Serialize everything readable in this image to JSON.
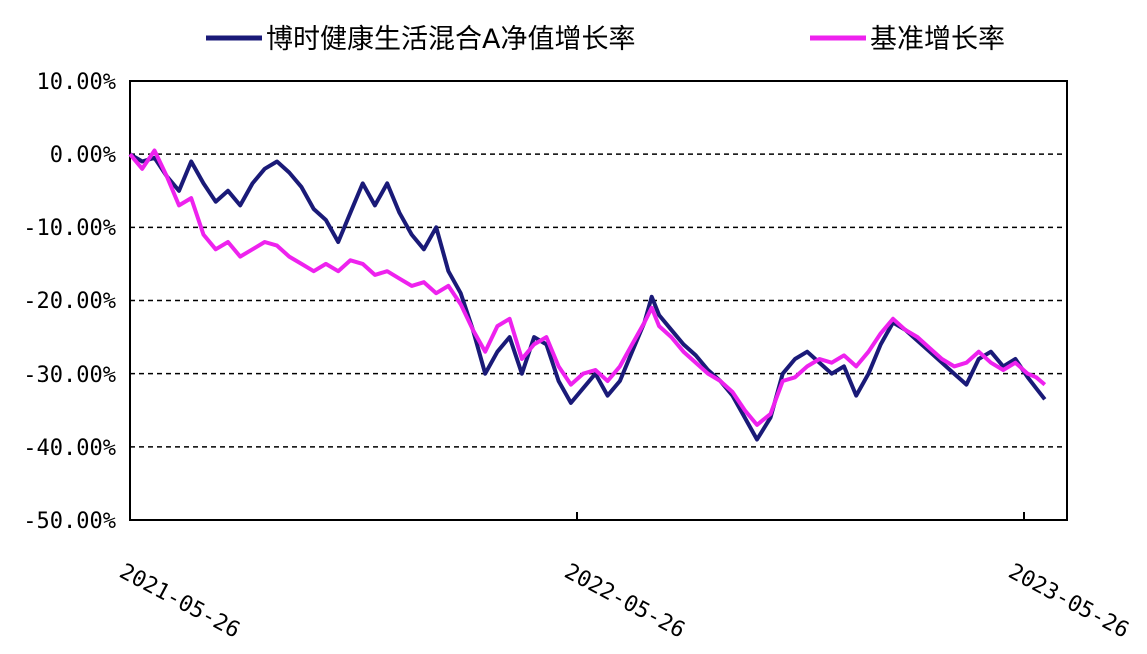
{
  "chart_data": {
    "type": "line",
    "title": "",
    "xlabel": "",
    "ylabel": "",
    "x_ticks": [
      "2021-05-26",
      "2022-05-26",
      "2023-05-26"
    ],
    "y_ticks": [
      "10.00%",
      "0.00%",
      "-10.00%",
      "-20.00%",
      "-30.00%",
      "-40.00%",
      "-50.00%"
    ],
    "ylim": [
      -50,
      10
    ],
    "xlim": [
      "2021-05-26",
      "2023-06-12"
    ],
    "grid": "horizontal-dashed",
    "legend_position": "top",
    "series": [
      {
        "name": "博时健康生活混合A净值增长率",
        "color": "#1a1a78",
        "points": [
          [
            "2021-05-26",
            0.0
          ],
          [
            "2021-06-05",
            -1.0
          ],
          [
            "2021-06-15",
            -0.5
          ],
          [
            "2021-06-25",
            -3.0
          ],
          [
            "2021-07-05",
            -5.0
          ],
          [
            "2021-07-15",
            -1.0
          ],
          [
            "2021-07-25",
            -4.0
          ],
          [
            "2021-08-04",
            -6.5
          ],
          [
            "2021-08-14",
            -5.0
          ],
          [
            "2021-08-24",
            -7.0
          ],
          [
            "2021-09-03",
            -4.0
          ],
          [
            "2021-09-13",
            -2.0
          ],
          [
            "2021-09-23",
            -1.0
          ],
          [
            "2021-10-03",
            -2.5
          ],
          [
            "2021-10-13",
            -4.5
          ],
          [
            "2021-10-23",
            -7.5
          ],
          [
            "2021-11-02",
            -9.0
          ],
          [
            "2021-11-12",
            -12.0
          ],
          [
            "2021-11-22",
            -8.0
          ],
          [
            "2021-12-02",
            -4.0
          ],
          [
            "2021-12-12",
            -7.0
          ],
          [
            "2021-12-22",
            -4.0
          ],
          [
            "2022-01-01",
            -8.0
          ],
          [
            "2022-01-11",
            -11.0
          ],
          [
            "2022-01-21",
            -13.0
          ],
          [
            "2022-01-31",
            -10.0
          ],
          [
            "2022-02-10",
            -16.0
          ],
          [
            "2022-02-20",
            -19.0
          ],
          [
            "2022-03-02",
            -24.0
          ],
          [
            "2022-03-12",
            -30.0
          ],
          [
            "2022-03-22",
            -27.0
          ],
          [
            "2022-04-01",
            -25.0
          ],
          [
            "2022-04-11",
            -30.0
          ],
          [
            "2022-04-21",
            -25.0
          ],
          [
            "2022-05-01",
            -26.0
          ],
          [
            "2022-05-11",
            -31.0
          ],
          [
            "2022-05-21",
            -34.0
          ],
          [
            "2022-05-31",
            -32.0
          ],
          [
            "2022-06-10",
            -30.0
          ],
          [
            "2022-06-20",
            -33.0
          ],
          [
            "2022-06-30",
            -31.0
          ],
          [
            "2022-07-10",
            -27.0
          ],
          [
            "2022-07-20",
            -23.0
          ],
          [
            "2022-07-26",
            -19.5
          ],
          [
            "2022-08-01",
            -22.0
          ],
          [
            "2022-08-11",
            -24.0
          ],
          [
            "2022-08-21",
            -26.0
          ],
          [
            "2022-08-31",
            -27.5
          ],
          [
            "2022-09-10",
            -29.5
          ],
          [
            "2022-09-20",
            -31.0
          ],
          [
            "2022-09-30",
            -33.0
          ],
          [
            "2022-10-10",
            -36.0
          ],
          [
            "2022-10-20",
            -39.0
          ],
          [
            "2022-10-31",
            -36.0
          ],
          [
            "2022-11-10",
            -30.0
          ],
          [
            "2022-11-20",
            -28.0
          ],
          [
            "2022-11-30",
            -27.0
          ],
          [
            "2022-12-10",
            -28.5
          ],
          [
            "2022-12-20",
            -30.0
          ],
          [
            "2022-12-30",
            -29.0
          ],
          [
            "2023-01-09",
            -33.0
          ],
          [
            "2023-01-19",
            -30.0
          ],
          [
            "2023-01-29",
            -26.0
          ],
          [
            "2023-02-08",
            -23.0
          ],
          [
            "2023-02-18",
            -24.0
          ],
          [
            "2023-02-28",
            -25.5
          ],
          [
            "2023-03-10",
            -27.0
          ],
          [
            "2023-03-20",
            -28.5
          ],
          [
            "2023-03-30",
            -30.0
          ],
          [
            "2023-04-09",
            -31.5
          ],
          [
            "2023-04-19",
            -28.0
          ],
          [
            "2023-04-29",
            -27.0
          ],
          [
            "2023-05-09",
            -29.0
          ],
          [
            "2023-05-19",
            -28.0
          ],
          [
            "2023-05-29",
            -30.5
          ],
          [
            "2023-06-05",
            -32.0
          ],
          [
            "2023-06-12",
            -33.5
          ]
        ]
      },
      {
        "name": "基准增长率",
        "color": "#ee22ee",
        "points": [
          [
            "2021-05-26",
            0.0
          ],
          [
            "2021-06-05",
            -2.0
          ],
          [
            "2021-06-15",
            0.5
          ],
          [
            "2021-06-25",
            -3.0
          ],
          [
            "2021-07-05",
            -7.0
          ],
          [
            "2021-07-15",
            -6.0
          ],
          [
            "2021-07-25",
            -11.0
          ],
          [
            "2021-08-04",
            -13.0
          ],
          [
            "2021-08-14",
            -12.0
          ],
          [
            "2021-08-24",
            -14.0
          ],
          [
            "2021-09-03",
            -13.0
          ],
          [
            "2021-09-13",
            -12.0
          ],
          [
            "2021-09-23",
            -12.5
          ],
          [
            "2021-10-03",
            -14.0
          ],
          [
            "2021-10-13",
            -15.0
          ],
          [
            "2021-10-23",
            -16.0
          ],
          [
            "2021-11-02",
            -15.0
          ],
          [
            "2021-11-12",
            -16.0
          ],
          [
            "2021-11-22",
            -14.5
          ],
          [
            "2021-12-02",
            -15.0
          ],
          [
            "2021-12-12",
            -16.5
          ],
          [
            "2021-12-22",
            -16.0
          ],
          [
            "2022-01-01",
            -17.0
          ],
          [
            "2022-01-11",
            -18.0
          ],
          [
            "2022-01-21",
            -17.5
          ],
          [
            "2022-01-31",
            -19.0
          ],
          [
            "2022-02-10",
            -18.0
          ],
          [
            "2022-02-20",
            -20.5
          ],
          [
            "2022-03-02",
            -24.0
          ],
          [
            "2022-03-12",
            -27.0
          ],
          [
            "2022-03-22",
            -23.5
          ],
          [
            "2022-04-01",
            -22.5
          ],
          [
            "2022-04-11",
            -28.0
          ],
          [
            "2022-04-21",
            -26.0
          ],
          [
            "2022-05-01",
            -25.0
          ],
          [
            "2022-05-11",
            -29.0
          ],
          [
            "2022-05-21",
            -31.5
          ],
          [
            "2022-05-31",
            -30.0
          ],
          [
            "2022-06-10",
            -29.5
          ],
          [
            "2022-06-20",
            -31.0
          ],
          [
            "2022-06-30",
            -29.0
          ],
          [
            "2022-07-10",
            -26.0
          ],
          [
            "2022-07-20",
            -23.0
          ],
          [
            "2022-07-26",
            -21.0
          ],
          [
            "2022-08-01",
            -23.5
          ],
          [
            "2022-08-11",
            -25.0
          ],
          [
            "2022-08-21",
            -27.0
          ],
          [
            "2022-08-31",
            -28.5
          ],
          [
            "2022-09-10",
            -30.0
          ],
          [
            "2022-09-20",
            -31.0
          ],
          [
            "2022-09-30",
            -32.5
          ],
          [
            "2022-10-10",
            -35.0
          ],
          [
            "2022-10-20",
            -37.0
          ],
          [
            "2022-10-31",
            -35.5
          ],
          [
            "2022-11-10",
            -31.0
          ],
          [
            "2022-11-20",
            -30.5
          ],
          [
            "2022-11-30",
            -29.0
          ],
          [
            "2022-12-10",
            -28.0
          ],
          [
            "2022-12-20",
            -28.5
          ],
          [
            "2022-12-30",
            -27.5
          ],
          [
            "2023-01-09",
            -29.0
          ],
          [
            "2023-01-19",
            -27.0
          ],
          [
            "2023-01-29",
            -24.5
          ],
          [
            "2023-02-08",
            -22.5
          ],
          [
            "2023-02-18",
            -24.0
          ],
          [
            "2023-02-28",
            -25.0
          ],
          [
            "2023-03-10",
            -26.5
          ],
          [
            "2023-03-20",
            -28.0
          ],
          [
            "2023-03-30",
            -29.0
          ],
          [
            "2023-04-09",
            -28.5
          ],
          [
            "2023-04-19",
            -27.0
          ],
          [
            "2023-04-29",
            -28.5
          ],
          [
            "2023-05-09",
            -29.5
          ],
          [
            "2023-05-19",
            -28.5
          ],
          [
            "2023-05-29",
            -30.0
          ],
          [
            "2023-06-05",
            -30.5
          ],
          [
            "2023-06-12",
            -31.5
          ]
        ]
      }
    ]
  }
}
